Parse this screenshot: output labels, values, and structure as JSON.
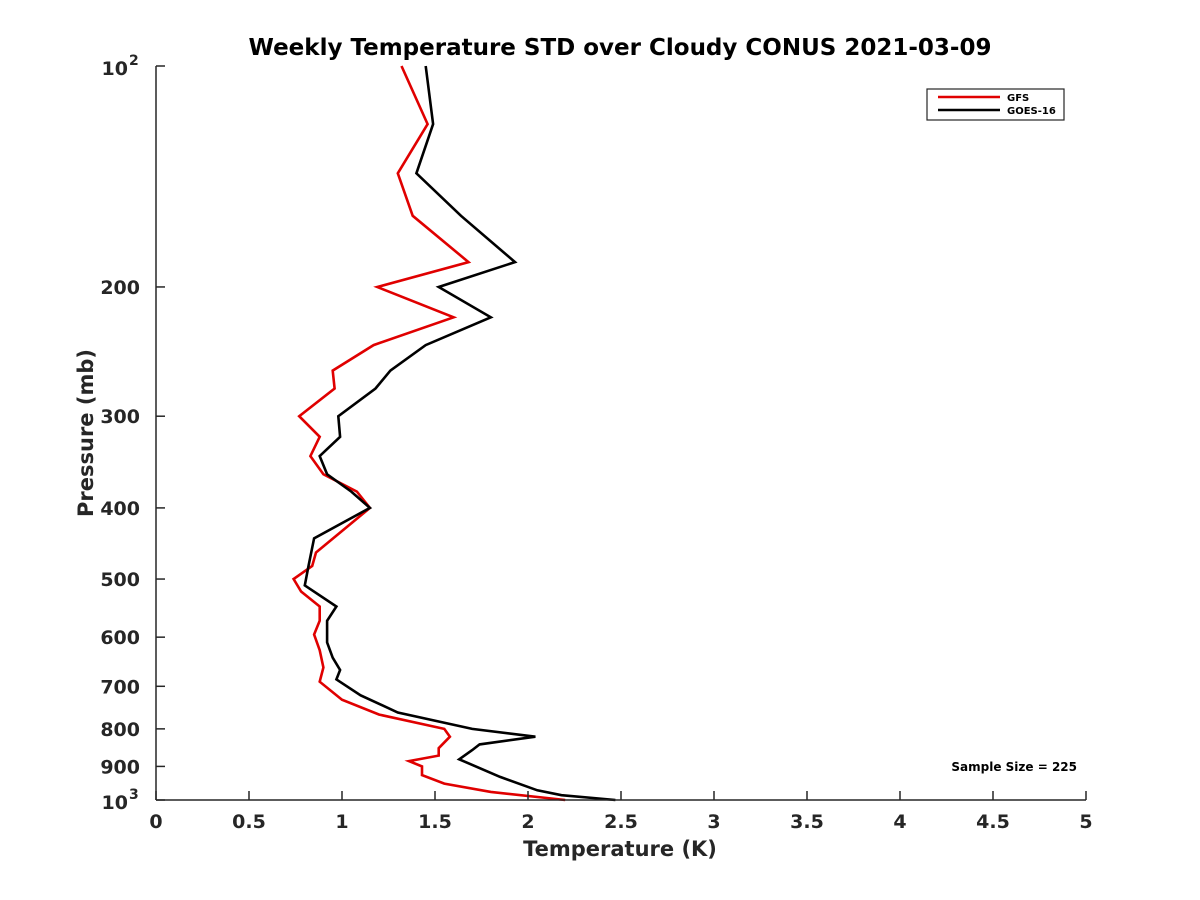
{
  "chart_data": {
    "type": "line",
    "title": "Weekly Temperature STD over Cloudy CONUS 2021-03-09",
    "xlabel": "Temperature (K)",
    "ylabel": "Pressure (mb)",
    "xlim": [
      0,
      5
    ],
    "ylim": [
      100,
      1000
    ],
    "yscale": "log",
    "y_reversed": true,
    "x_ticks": [
      "0",
      "0.5",
      "1",
      "1.5",
      "2",
      "2.5",
      "3",
      "3.5",
      "4",
      "4.5",
      "5"
    ],
    "y_ticks": [
      {
        "value": 100,
        "base": "10",
        "exp": "2"
      },
      {
        "value": 200,
        "label": "200"
      },
      {
        "value": 300,
        "label": "300"
      },
      {
        "value": 400,
        "label": "400"
      },
      {
        "value": 500,
        "label": "500"
      },
      {
        "value": 600,
        "label": "600"
      },
      {
        "value": 700,
        "label": "700"
      },
      {
        "value": 800,
        "label": "800"
      },
      {
        "value": 900,
        "label": "900"
      },
      {
        "value": 1000,
        "base": "10",
        "exp": "3"
      }
    ],
    "legend_position": "top-right",
    "annotation": "Sample Size = 225",
    "series": [
      {
        "name": "GFS",
        "color": "#e00000",
        "points": [
          [
            1.32,
            100
          ],
          [
            1.46,
            120
          ],
          [
            1.3,
            140
          ],
          [
            1.38,
            160
          ],
          [
            1.68,
            185
          ],
          [
            1.19,
            200
          ],
          [
            1.6,
            220
          ],
          [
            1.17,
            240
          ],
          [
            0.95,
            260
          ],
          [
            0.96,
            275
          ],
          [
            0.77,
            300
          ],
          [
            0.88,
            320
          ],
          [
            0.83,
            340
          ],
          [
            0.9,
            360
          ],
          [
            1.08,
            380
          ],
          [
            1.15,
            400
          ],
          [
            1.0,
            430
          ],
          [
            0.86,
            460
          ],
          [
            0.84,
            480
          ],
          [
            0.74,
            500
          ],
          [
            0.78,
            520
          ],
          [
            0.88,
            545
          ],
          [
            0.88,
            570
          ],
          [
            0.85,
            595
          ],
          [
            0.88,
            625
          ],
          [
            0.9,
            660
          ],
          [
            0.88,
            690
          ],
          [
            1.0,
            730
          ],
          [
            1.2,
            765
          ],
          [
            1.55,
            800
          ],
          [
            1.58,
            820
          ],
          [
            1.52,
            850
          ],
          [
            1.52,
            870
          ],
          [
            1.36,
            885
          ],
          [
            1.43,
            900
          ],
          [
            1.43,
            925
          ],
          [
            1.55,
            950
          ],
          [
            1.8,
            975
          ],
          [
            2.2,
            1000
          ]
        ]
      },
      {
        "name": "GOES-16",
        "color": "#000000",
        "points": [
          [
            1.45,
            100
          ],
          [
            1.49,
            120
          ],
          [
            1.4,
            140
          ],
          [
            1.64,
            160
          ],
          [
            1.93,
            185
          ],
          [
            1.52,
            200
          ],
          [
            1.8,
            220
          ],
          [
            1.45,
            240
          ],
          [
            1.26,
            260
          ],
          [
            1.18,
            275
          ],
          [
            0.98,
            300
          ],
          [
            0.99,
            320
          ],
          [
            0.88,
            340
          ],
          [
            0.92,
            360
          ],
          [
            1.05,
            380
          ],
          [
            1.15,
            400
          ],
          [
            0.85,
            440
          ],
          [
            0.82,
            480
          ],
          [
            0.8,
            510
          ],
          [
            0.97,
            545
          ],
          [
            0.92,
            570
          ],
          [
            0.92,
            610
          ],
          [
            0.95,
            640
          ],
          [
            0.99,
            665
          ],
          [
            0.97,
            685
          ],
          [
            1.1,
            720
          ],
          [
            1.3,
            760
          ],
          [
            1.7,
            800
          ],
          [
            2.04,
            820
          ],
          [
            1.74,
            840
          ],
          [
            1.7,
            855
          ],
          [
            1.63,
            880
          ],
          [
            1.85,
            930
          ],
          [
            2.05,
            970
          ],
          [
            2.18,
            985
          ],
          [
            2.47,
            1000
          ]
        ]
      }
    ]
  }
}
